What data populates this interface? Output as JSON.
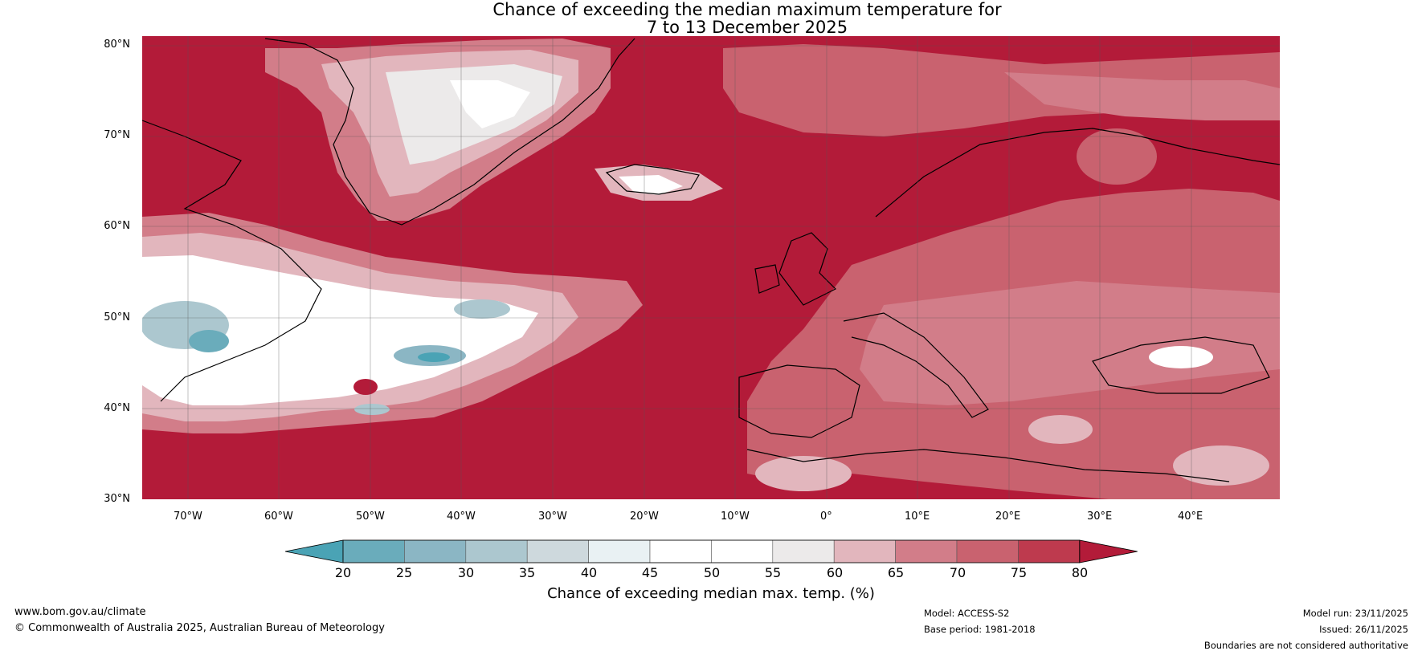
{
  "title_line1": "Chance of exceeding the median maximum temperature for",
  "title_line2": "7 to 13 December 2025",
  "latitude_labels": [
    "80°N",
    "70°N",
    "60°N",
    "50°N",
    "40°N",
    "30°N"
  ],
  "longitude_labels": [
    "70°W",
    "60°W",
    "50°W",
    "40°W",
    "30°W",
    "20°W",
    "10°W",
    "0°",
    "10°E",
    "20°E",
    "30°E",
    "40°E"
  ],
  "colorbar": {
    "ticks": [
      "20",
      "25",
      "30",
      "35",
      "40",
      "45",
      "50",
      "55",
      "60",
      "65",
      "70",
      "75",
      "80"
    ],
    "colors": [
      "#4aa3b5",
      "#6aacbb",
      "#8bb6c4",
      "#acc7cf",
      "#ced9dd",
      "#e9f1f3",
      "#ffffff",
      "#ffffff",
      "#eceaea",
      "#e2b6bd",
      "#d27d89",
      "#c9626f",
      "#be3a4e",
      "#b31b39"
    ],
    "label": "Chance of exceeding median max. temp. (%)"
  },
  "colors": {
    "high": "#b31b39",
    "mid_high": "#c9626f",
    "light": "#e2b6bd",
    "neutral": "#ffffff",
    "low": "#6aacbb"
  },
  "footer": {
    "website": "www.bom.gov.au/climate",
    "copyright": "© Commonwealth of Australia 2025, Australian Bureau of Meteorology",
    "model": "Model: ACCESS-S2",
    "base_period": "Base period: 1981-2018",
    "model_run": "Model run: 23/11/2025",
    "issued": "Issued: 26/11/2025",
    "boundaries": "Boundaries are not considered authoritative"
  }
}
